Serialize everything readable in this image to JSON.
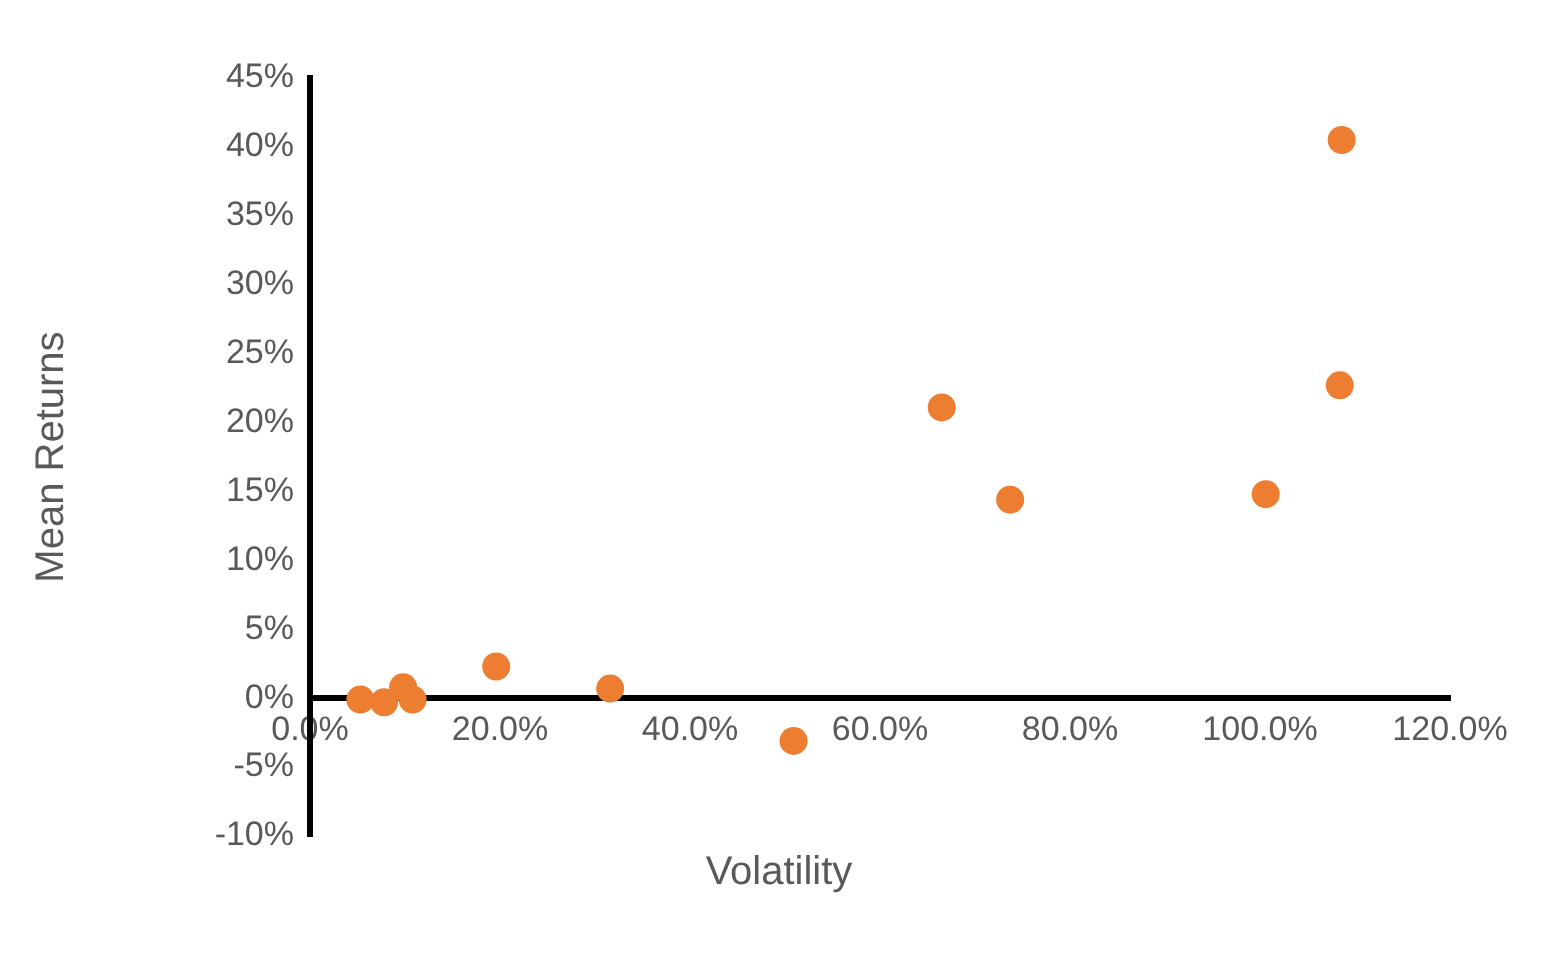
{
  "chart_data": {
    "type": "scatter",
    "xlabel": "Volatility",
    "ylabel": "Mean Returns",
    "marker": "circle",
    "grid": false,
    "legend": false,
    "xlim": [
      0,
      120
    ],
    "ylim": [
      -10,
      45
    ],
    "xticks": [
      {
        "value": 0,
        "label": "0.0%"
      },
      {
        "value": 20,
        "label": "20.0%"
      },
      {
        "value": 40,
        "label": "40.0%"
      },
      {
        "value": 60,
        "label": "60.0%"
      },
      {
        "value": 80,
        "label": "80.0%"
      },
      {
        "value": 100,
        "label": "100.0%"
      },
      {
        "value": 120,
        "label": "120.0%"
      }
    ],
    "yticks": [
      {
        "value": -10,
        "label": "-10%"
      },
      {
        "value": -5,
        "label": "-5%"
      },
      {
        "value": 0,
        "label": "0%"
      },
      {
        "value": 5,
        "label": "5%"
      },
      {
        "value": 10,
        "label": "10%"
      },
      {
        "value": 15,
        "label": "15%"
      },
      {
        "value": 20,
        "label": "20%"
      },
      {
        "value": 25,
        "label": "25%"
      },
      {
        "value": 30,
        "label": "30%"
      },
      {
        "value": 35,
        "label": "35%"
      },
      {
        "value": 40,
        "label": "40%"
      },
      {
        "value": 45,
        "label": "45%"
      }
    ],
    "series": [
      {
        "color": "#ed7d31",
        "x": [
          5.3,
          7.8,
          9.8,
          10.8,
          19.6,
          31.6,
          50.9,
          66.5,
          73.7,
          100.6,
          108.4,
          108.6
        ],
        "values": [
          -0.1,
          -0.3,
          0.8,
          -0.1,
          2.3,
          0.7,
          -3.1,
          21.1,
          14.4,
          14.8,
          22.7,
          40.5
        ]
      }
    ]
  }
}
